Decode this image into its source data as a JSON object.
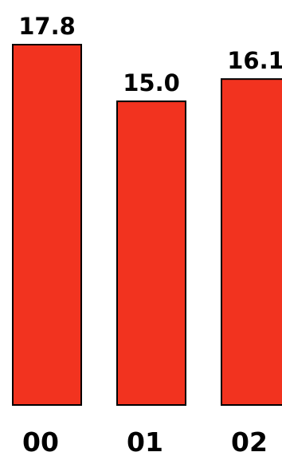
{
  "chart_data": {
    "type": "bar",
    "categories": [
      "00",
      "01",
      "02"
    ],
    "values": [
      17.8,
      15.0,
      16.1
    ],
    "value_labels": [
      "17.8",
      "15.0",
      "16.1"
    ],
    "title": "",
    "xlabel": "",
    "ylabel": "",
    "ylim": [
      0,
      17.8
    ],
    "grid": false,
    "legend": "none",
    "bar_color": "#f2331f",
    "bar_edge_color": "#000000",
    "label_color": "#000000"
  }
}
